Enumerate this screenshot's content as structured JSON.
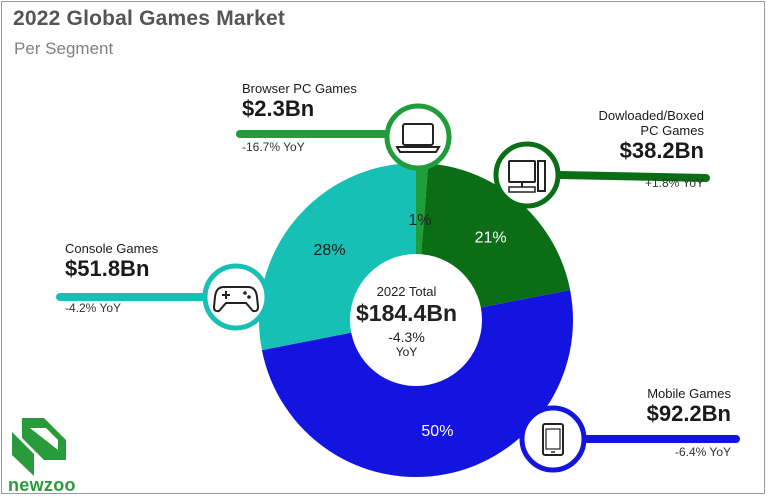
{
  "title": "2022 Global Games Market",
  "subtitle": "Per Segment",
  "center": {
    "label": "2022 Total",
    "value": "$184.4Bn",
    "change": "-4.3%",
    "change_unit": "YoY"
  },
  "brand": "newzoo",
  "chart_data": {
    "type": "pie",
    "title": "2022 Global Games Market",
    "subtitle": "Per Segment",
    "total": 184.4,
    "unit": "$Bn",
    "slices": [
      {
        "name": "Browser PC Games",
        "value": 2.3,
        "value_label": "$2.3Bn",
        "pct": 1,
        "pct_label": "1%",
        "yoy": "-16.7% YoY",
        "color": "#1f9d3a",
        "icon": "laptop-icon"
      },
      {
        "name": "Dowloaded/Boxed PC Games",
        "name_lines": [
          "Dowloaded/Boxed",
          "PC Games"
        ],
        "value": 38.2,
        "value_label": "$38.2Bn",
        "pct": 21,
        "pct_label": "21%",
        "yoy": "+1.8% YoY",
        "color": "#0b6d16",
        "icon": "desktop-computer-icon"
      },
      {
        "name": "Mobile Games",
        "value": 92.2,
        "value_label": "$92.2Bn",
        "pct": 50,
        "pct_label": "50%",
        "yoy": "-6.4% YoY",
        "color": "#1414e0",
        "icon": "smartphone-icon"
      },
      {
        "name": "Console Games",
        "value": 51.8,
        "value_label": "$51.8Bn",
        "pct": 28,
        "pct_label": "28%",
        "yoy": "-4.2% YoY",
        "color": "#17c0b4",
        "icon": "gamepad-icon"
      }
    ]
  }
}
